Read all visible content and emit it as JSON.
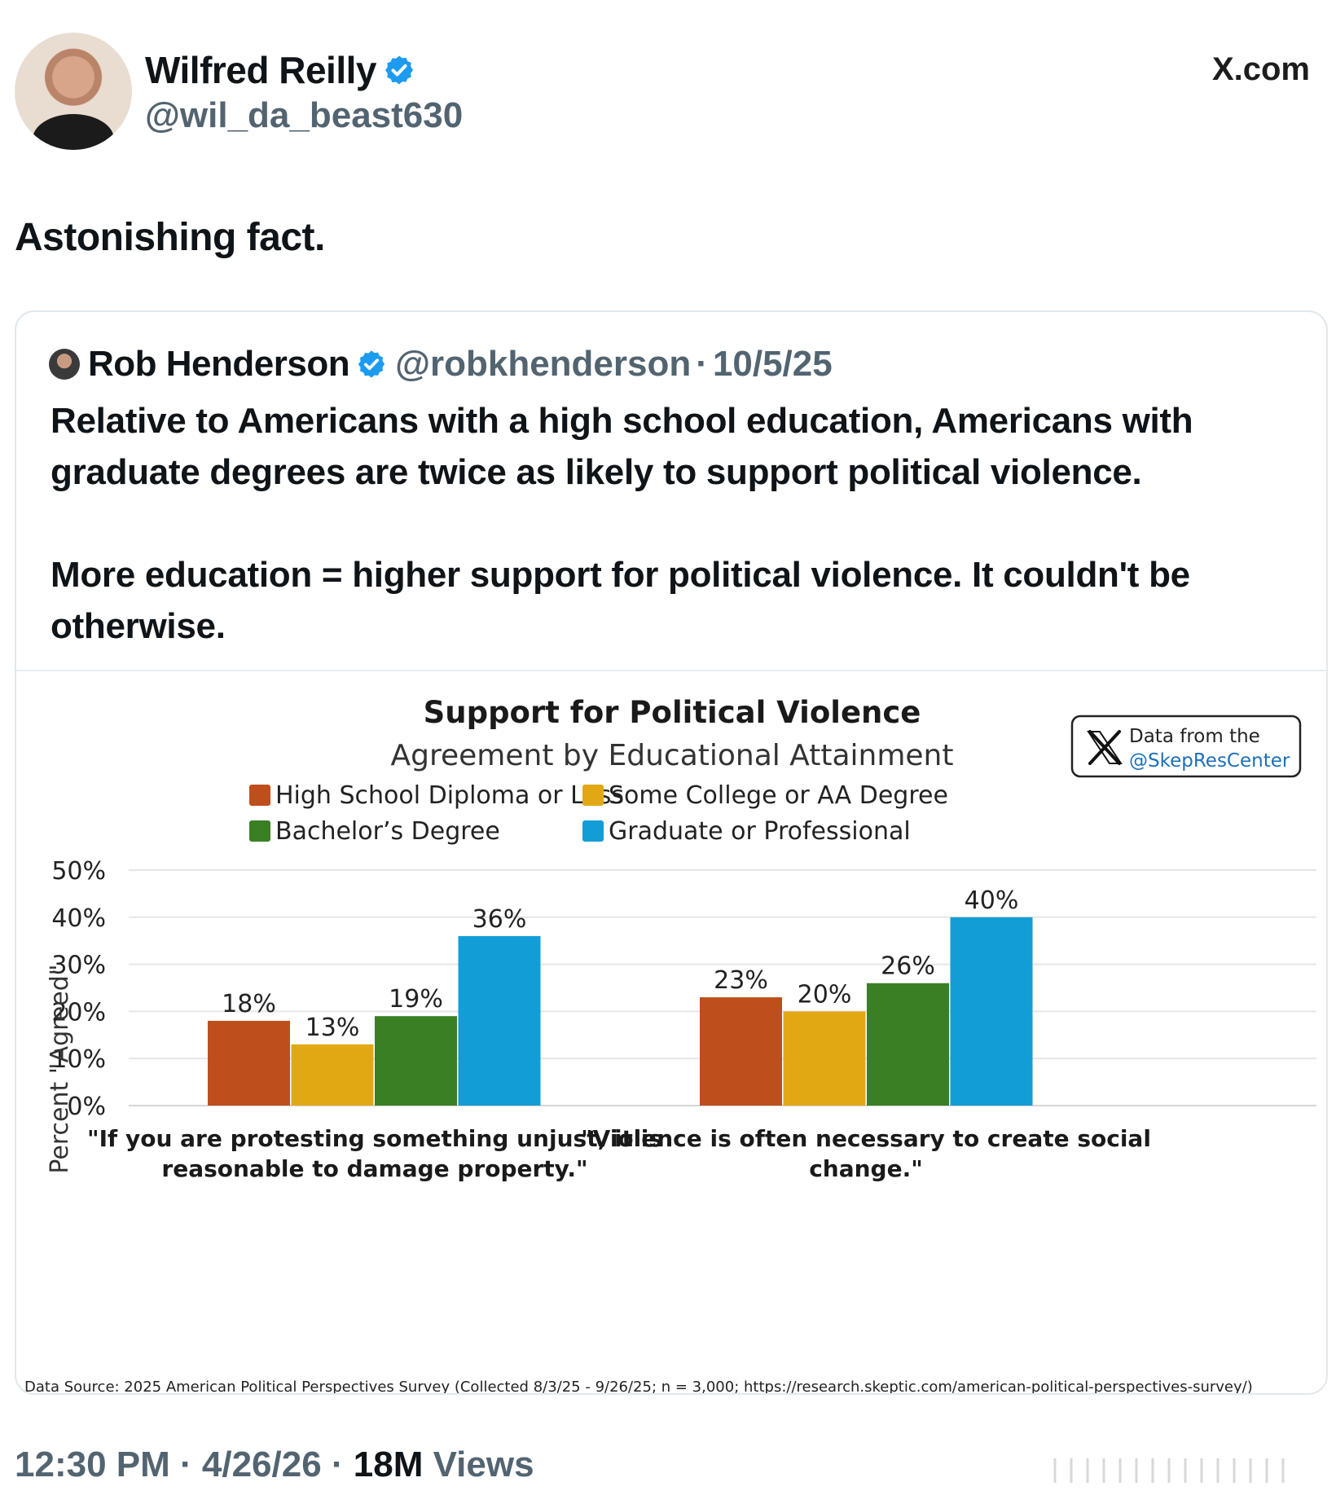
{
  "post": {
    "author_name": "Wilfred Reilly",
    "author_handle": "@wil_da_beast630",
    "brand": "X.com",
    "text": "Astonishing fact.",
    "time": "12:30 PM",
    "date": "4/26/26",
    "views_count": "18M",
    "views_label": "Views"
  },
  "quoted": {
    "author_name": "Rob Henderson",
    "author_handle": "@robkhenderson",
    "date": "10/5/25",
    "paragraph1": "Relative to Americans with a high school education, Americans with graduate degrees are twice as likely to support political violence.",
    "paragraph2": "More education = higher support for political violence. It couldn't be otherwise."
  },
  "chart_badge": {
    "line1": "Data from the",
    "line2": "@SkepResCenter"
  },
  "chart_data": {
    "type": "bar",
    "title": "Support for Political Violence",
    "subtitle": "Agreement by Educational Attainment",
    "ylabel": "Percent \"Agreed\"",
    "ylim": [
      0,
      50
    ],
    "yticks": [
      "0%",
      "10%",
      "20%",
      "30%",
      "40%",
      "50%"
    ],
    "legend_position": "top",
    "grid": true,
    "categories": [
      "\"If you are protesting something unjust, it is reasonable to damage property.\"",
      "\"Violence is often necessary to create social change.\""
    ],
    "category_lines": [
      [
        "\"If you are protesting something unjust, it is",
        "reasonable to damage property.\""
      ],
      [
        "\"Violence is often necessary to create social",
        "change.\""
      ]
    ],
    "series": [
      {
        "name": "High School Diploma or Less",
        "color": "#be4f1c",
        "values": [
          18,
          23
        ],
        "labels": [
          "18%",
          "23%"
        ]
      },
      {
        "name": "Some College or AA Degree",
        "color": "#e2a814",
        "values": [
          13,
          20
        ],
        "labels": [
          "13%",
          "20%"
        ]
      },
      {
        "name": "Bachelor’s Degree",
        "color": "#3a7f24",
        "values": [
          19,
          26
        ],
        "labels": [
          "19%",
          "26%"
        ]
      },
      {
        "name": "Graduate or Professional",
        "color": "#139dd6",
        "values": [
          36,
          40
        ],
        "labels": [
          "36%",
          "40%"
        ]
      }
    ],
    "source": "Data Source: 2025 American Political Perspectives Survey (Collected 8/3/25 - 9/26/25; n = 3,000; https://research.skeptic.com/american-political-perspectives-survey/)"
  },
  "colors": {
    "verified": "#1d9bf0",
    "muted_text": "#536471",
    "gridline": "#e3e3e3"
  }
}
